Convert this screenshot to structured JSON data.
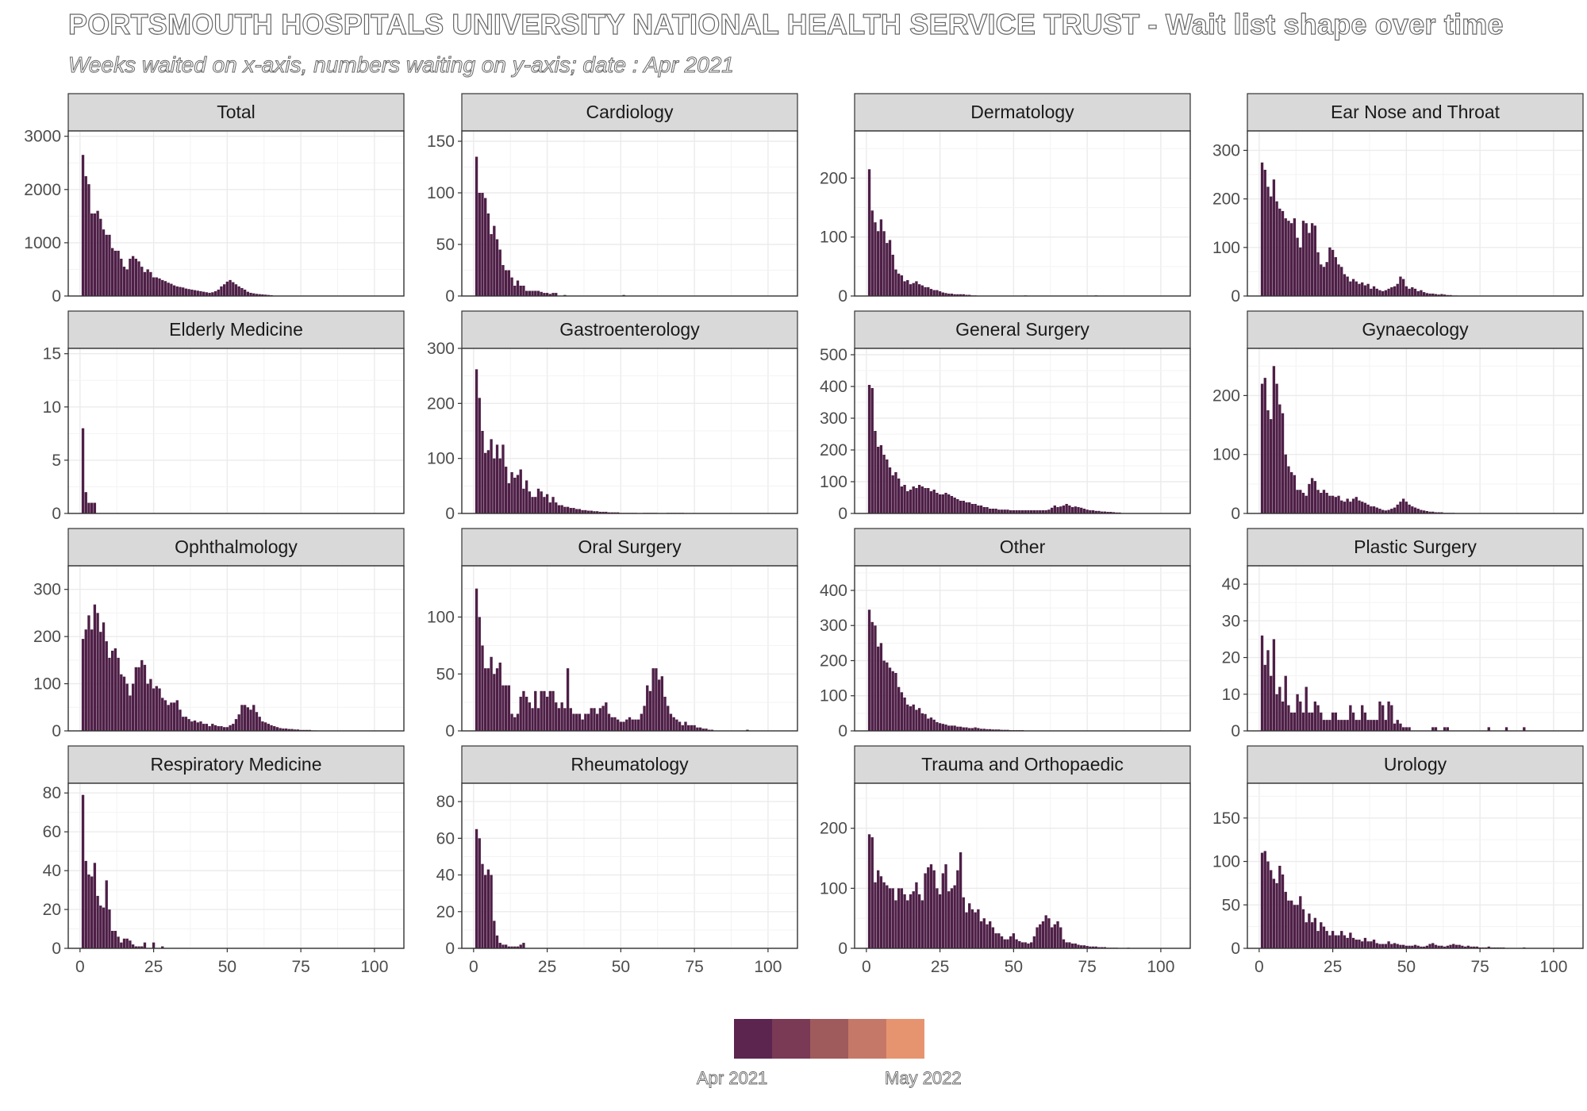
{
  "title": "PORTSMOUTH HOSPITALS UNIVERSITY NATIONAL HEALTH SERVICE TRUST - Wait list shape over time",
  "subtitle": "Weeks waited on x-axis, numbers waiting on y-axis; date : Apr 2021",
  "legend": {
    "start_label": "Apr 2021",
    "end_label": "May 2022",
    "colors": [
      "#5b2550",
      "#7a3a55",
      "#9f5a5c",
      "#c67868",
      "#e69470"
    ]
  },
  "colors": {
    "bar": "#4e1f47",
    "strip": "#d9d9d9",
    "grid": "#ebebeb",
    "axis_text": "#4d4d4d"
  },
  "chart_data": {
    "type": "bar",
    "x_ticks": [
      0,
      25,
      50,
      75,
      100
    ],
    "xlim": [
      -4,
      110
    ],
    "panels": [
      {
        "title": "Total",
        "ylim": [
          0,
          3100
        ],
        "yticks": [
          0,
          1000,
          2000,
          3000
        ],
        "values": [
          2650,
          2250,
          2100,
          1550,
          1550,
          1600,
          1450,
          1250,
          1150,
          1150,
          900,
          850,
          850,
          700,
          550,
          500,
          700,
          750,
          700,
          650,
          550,
          450,
          500,
          450,
          350,
          350,
          330,
          300,
          280,
          250,
          230,
          200,
          180,
          170,
          160,
          140,
          130,
          120,
          110,
          100,
          90,
          80,
          70,
          60,
          70,
          90,
          120,
          180,
          220,
          270,
          300,
          260,
          220,
          180,
          150,
          120,
          80,
          60,
          50,
          40,
          35,
          30,
          25,
          20,
          15
        ],
        "x_start": 1
      },
      {
        "title": "Cardiology",
        "ylim": [
          0,
          160
        ],
        "yticks": [
          0,
          50,
          100,
          150
        ],
        "values": [
          135,
          100,
          100,
          95,
          80,
          60,
          68,
          55,
          45,
          30,
          25,
          25,
          18,
          10,
          15,
          10,
          10,
          5,
          5,
          5,
          5,
          5,
          4,
          3,
          3,
          2,
          3,
          3,
          0,
          0,
          1,
          0,
          0,
          0,
          0,
          0,
          0,
          0,
          0,
          0,
          0,
          0,
          0,
          0,
          0,
          0,
          0,
          0,
          0,
          0,
          1
        ],
        "x_start": 1
      },
      {
        "title": "Dermatology",
        "ylim": [
          0,
          280
        ],
        "yticks": [
          0,
          100,
          200
        ],
        "values": [
          215,
          145,
          125,
          110,
          130,
          110,
          90,
          95,
          70,
          45,
          38,
          35,
          25,
          27,
          20,
          22,
          25,
          20,
          18,
          15,
          15,
          12,
          10,
          10,
          8,
          6,
          5,
          4,
          4,
          3,
          3,
          3,
          3,
          2,
          2,
          1,
          1,
          0,
          0,
          0,
          0,
          0,
          0,
          0,
          0,
          0,
          0,
          0,
          0,
          0,
          0,
          0,
          0,
          1,
          0,
          0,
          0,
          0,
          0,
          0,
          0,
          0,
          0,
          0,
          0,
          0,
          0,
          0,
          0,
          0,
          0,
          0,
          0,
          0,
          0,
          0,
          0,
          1
        ],
        "x_start": 1
      },
      {
        "title": "Ear Nose and Throat",
        "ylim": [
          0,
          340
        ],
        "yticks": [
          0,
          100,
          200,
          300
        ],
        "values": [
          275,
          260,
          225,
          205,
          240,
          195,
          180,
          175,
          160,
          155,
          150,
          160,
          120,
          100,
          155,
          150,
          130,
          150,
          145,
          90,
          65,
          60,
          70,
          100,
          95,
          80,
          65,
          60,
          45,
          40,
          30,
          35,
          30,
          25,
          28,
          22,
          25,
          15,
          20,
          15,
          12,
          10,
          12,
          15,
          18,
          20,
          25,
          40,
          35,
          20,
          15,
          18,
          15,
          10,
          12,
          8,
          6,
          5,
          5,
          4,
          3,
          4,
          3,
          2,
          2,
          1,
          1,
          0,
          0,
          0,
          0,
          0,
          0,
          0,
          0,
          0,
          0,
          0,
          0,
          0,
          0,
          0,
          0,
          0,
          0,
          0,
          0,
          0,
          0,
          0,
          0,
          0,
          0,
          0,
          0,
          0,
          0,
          0,
          0,
          0,
          0
        ],
        "x_start": 1
      },
      {
        "title": "Elderly Medicine",
        "ylim": [
          0,
          15.5
        ],
        "yticks": [
          0,
          5,
          10,
          15
        ],
        "values": [
          8,
          2,
          1,
          1,
          1
        ],
        "x_start": 1
      },
      {
        "title": "Gastroenterology",
        "ylim": [
          0,
          300
        ],
        "yticks": [
          0,
          100,
          200,
          300
        ],
        "values": [
          262,
          210,
          150,
          110,
          115,
          135,
          100,
          125,
          100,
          125,
          85,
          55,
          75,
          65,
          70,
          80,
          45,
          60,
          40,
          30,
          30,
          45,
          40,
          30,
          35,
          20,
          30,
          20,
          15,
          15,
          12,
          12,
          10,
          10,
          8,
          8,
          6,
          6,
          5,
          5,
          4,
          4,
          3,
          3,
          3,
          2,
          2,
          2,
          2,
          1,
          1,
          1,
          1,
          1,
          1,
          0,
          0,
          1,
          1,
          1,
          1,
          1,
          0,
          0,
          0,
          1,
          1,
          1,
          1,
          1,
          1
        ],
        "x_start": 1
      },
      {
        "title": "General Surgery",
        "ylim": [
          0,
          520
        ],
        "yticks": [
          0,
          100,
          200,
          300,
          400,
          500
        ],
        "values": [
          405,
          395,
          260,
          210,
          215,
          185,
          170,
          145,
          120,
          130,
          110,
          85,
          90,
          70,
          75,
          85,
          80,
          90,
          85,
          80,
          80,
          70,
          75,
          65,
          60,
          60,
          65,
          60,
          55,
          50,
          45,
          40,
          40,
          35,
          35,
          30,
          30,
          25,
          25,
          20,
          20,
          15,
          15,
          15,
          12,
          12,
          12,
          12,
          10,
          10,
          10,
          10,
          10,
          10,
          10,
          10,
          10,
          10,
          10,
          10,
          10,
          12,
          18,
          25,
          20,
          22,
          25,
          30,
          25,
          20,
          22,
          20,
          18,
          15,
          12,
          10,
          10,
          8,
          8,
          6,
          6,
          5,
          5,
          4,
          3,
          3
        ],
        "x_start": 1
      },
      {
        "title": "Gynaecology",
        "ylim": [
          0,
          280
        ],
        "yticks": [
          0,
          100,
          200
        ],
        "values": [
          220,
          230,
          175,
          160,
          250,
          220,
          185,
          170,
          100,
          80,
          70,
          65,
          40,
          40,
          35,
          30,
          50,
          60,
          55,
          40,
          35,
          40,
          35,
          30,
          30,
          28,
          30,
          22,
          20,
          25,
          20,
          25,
          28,
          22,
          20,
          18,
          15,
          12,
          12,
          10,
          8,
          6,
          5,
          6,
          8,
          10,
          15,
          20,
          25,
          20,
          15,
          12,
          10,
          8,
          6,
          5,
          4,
          3,
          3,
          2,
          2,
          2,
          1,
          1,
          1,
          1
        ],
        "x_start": 1
      },
      {
        "title": "Ophthalmology",
        "ylim": [
          0,
          350
        ],
        "yticks": [
          0,
          100,
          200,
          300
        ],
        "values": [
          195,
          215,
          245,
          215,
          268,
          250,
          210,
          230,
          190,
          155,
          170,
          175,
          155,
          120,
          115,
          100,
          75,
          100,
          135,
          135,
          150,
          140,
          100,
          110,
          90,
          95,
          90,
          70,
          65,
          55,
          60,
          60,
          65,
          45,
          30,
          30,
          25,
          20,
          22,
          18,
          20,
          15,
          15,
          10,
          15,
          12,
          10,
          10,
          8,
          8,
          12,
          15,
          25,
          35,
          55,
          55,
          50,
          45,
          55,
          40,
          30,
          20,
          18,
          15,
          12,
          10,
          8,
          6,
          5,
          5,
          4,
          4,
          3,
          3,
          2,
          2,
          2,
          2,
          1,
          1
        ],
        "x_start": 1
      },
      {
        "title": "Oral Surgery",
        "ylim": [
          0,
          145
        ],
        "yticks": [
          0,
          50,
          100
        ],
        "values": [
          125,
          100,
          75,
          55,
          55,
          65,
          50,
          55,
          60,
          40,
          40,
          40,
          15,
          12,
          15,
          30,
          35,
          30,
          25,
          20,
          35,
          20,
          35,
          35,
          30,
          35,
          35,
          25,
          20,
          25,
          20,
          55,
          20,
          15,
          15,
          15,
          10,
          15,
          15,
          20,
          20,
          15,
          20,
          22,
          25,
          15,
          12,
          12,
          10,
          8,
          8,
          10,
          12,
          10,
          10,
          10,
          15,
          22,
          40,
          35,
          55,
          55,
          45,
          48,
          30,
          22,
          15,
          12,
          10,
          8,
          5,
          8,
          5,
          5,
          5,
          3,
          3,
          2,
          2,
          1,
          1,
          0,
          0,
          0,
          0,
          0,
          0,
          0,
          0,
          0,
          0,
          0,
          1
        ],
        "x_start": 1
      },
      {
        "title": "Other",
        "ylim": [
          0,
          470
        ],
        "yticks": [
          0,
          100,
          200,
          300,
          400
        ],
        "values": [
          345,
          310,
          300,
          240,
          250,
          200,
          195,
          180,
          170,
          165,
          125,
          110,
          95,
          75,
          70,
          75,
          60,
          65,
          50,
          48,
          35,
          38,
          32,
          25,
          22,
          20,
          18,
          15,
          15,
          15,
          12,
          12,
          10,
          10,
          8,
          8,
          10,
          8,
          6,
          6,
          5,
          5,
          4,
          4,
          4,
          3,
          3,
          3,
          2,
          2,
          2,
          2,
          2,
          1,
          1,
          1,
          1,
          1,
          1,
          1,
          1,
          1,
          1,
          1,
          1,
          1,
          1,
          1,
          1,
          1,
          1,
          1
        ],
        "x_start": 1
      },
      {
        "title": "Plastic Surgery",
        "ylim": [
          0,
          45
        ],
        "yticks": [
          0,
          10,
          20,
          30,
          40
        ],
        "values": [
          26,
          18,
          22,
          15,
          25,
          10,
          12,
          8,
          15,
          7,
          5,
          5,
          10,
          8,
          5,
          12,
          5,
          5,
          8,
          7,
          5,
          3,
          3,
          3,
          5,
          5,
          3,
          3,
          3,
          3,
          7,
          5,
          3,
          3,
          7,
          5,
          3,
          3,
          3,
          3,
          8,
          7,
          3,
          8,
          7,
          2,
          3,
          2,
          1,
          1,
          1,
          0,
          0,
          0,
          0,
          0,
          0,
          0,
          1,
          1,
          0,
          0,
          1,
          1,
          0,
          0,
          0,
          0,
          0,
          0,
          0,
          0,
          0,
          0,
          0,
          0,
          0,
          1,
          0,
          0,
          0,
          0,
          0,
          1,
          0,
          0,
          0,
          0,
          0,
          1
        ],
        "x_start": 1
      },
      {
        "title": "Respiratory Medicine",
        "ylim": [
          0,
          85
        ],
        "yticks": [
          0,
          20,
          40,
          60,
          80
        ],
        "values": [
          79,
          45,
          38,
          37,
          44,
          27,
          22,
          21,
          35,
          20,
          9,
          9,
          6,
          3,
          5,
          5,
          4,
          2,
          1,
          1,
          1,
          3,
          0,
          0,
          3,
          0,
          0,
          1
        ],
        "x_start": 1
      },
      {
        "title": "Rheumatology",
        "ylim": [
          0,
          90
        ],
        "yticks": [
          0,
          20,
          40,
          60,
          80
        ],
        "values": [
          65,
          60,
          46,
          40,
          43,
          40,
          15,
          7,
          3,
          2,
          2,
          1,
          1,
          1,
          1,
          2,
          3
        ],
        "x_start": 1
      },
      {
        "title": "Trauma and Orthopaedic",
        "ylim": [
          0,
          275
        ],
        "yticks": [
          0,
          100,
          200
        ],
        "values": [
          190,
          185,
          110,
          130,
          120,
          110,
          105,
          100,
          100,
          80,
          100,
          100,
          90,
          80,
          90,
          95,
          110,
          90,
          80,
          125,
          135,
          140,
          130,
          100,
          90,
          125,
          140,
          95,
          100,
          105,
          130,
          160,
          85,
          60,
          75,
          65,
          60,
          65,
          45,
          50,
          40,
          45,
          35,
          25,
          25,
          20,
          15,
          15,
          20,
          25,
          15,
          12,
          10,
          10,
          8,
          10,
          20,
          35,
          40,
          45,
          55,
          50,
          35,
          40,
          45,
          35,
          15,
          10,
          10,
          8,
          8,
          6,
          5,
          5,
          4,
          3,
          3,
          3,
          2,
          2,
          2,
          1,
          1,
          1,
          1,
          0,
          0,
          0,
          1
        ],
        "x_start": 1
      },
      {
        "title": "Urology",
        "ylim": [
          0,
          190
        ],
        "yticks": [
          0,
          50,
          100,
          150
        ],
        "values": [
          110,
          112,
          100,
          90,
          80,
          75,
          95,
          85,
          65,
          55,
          55,
          50,
          50,
          60,
          45,
          30,
          40,
          30,
          35,
          20,
          30,
          25,
          20,
          15,
          20,
          15,
          15,
          20,
          15,
          12,
          18,
          12,
          10,
          10,
          8,
          12,
          8,
          8,
          10,
          6,
          5,
          5,
          5,
          8,
          5,
          6,
          5,
          4,
          4,
          3,
          3,
          3,
          4,
          3,
          2,
          2,
          3,
          5,
          6,
          4,
          3,
          3,
          2,
          3,
          4,
          5,
          4,
          4,
          3,
          2,
          3,
          2,
          2,
          2,
          1,
          1,
          1,
          2,
          1,
          1,
          1,
          1,
          1,
          0,
          0,
          0,
          0,
          0,
          0,
          1
        ],
        "x_start": 1
      }
    ]
  }
}
